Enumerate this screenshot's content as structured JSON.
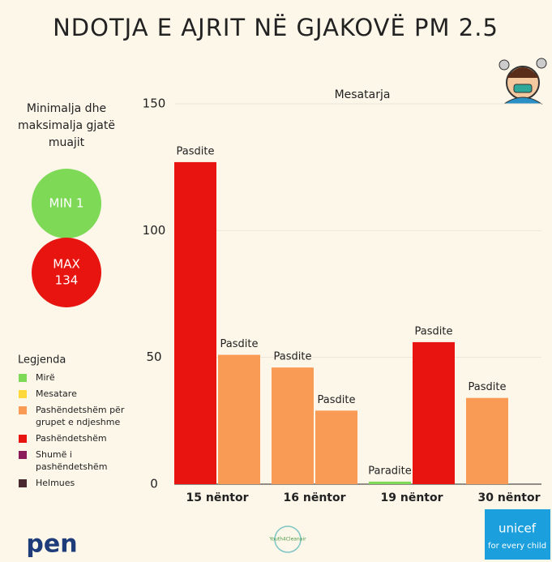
{
  "chart_data": {
    "type": "bar",
    "title": "NDOTJA E AJRIT NË GJAKOVË PM 2.5",
    "annotation": "Mesatarja",
    "side_text": [
      "Minimalja dhe",
      "maksimalja gjatë",
      "muajit"
    ],
    "min_text": "MIN 1",
    "max_text": [
      "MAX",
      "134"
    ],
    "categories": [
      "15  nëntor",
      "16 nëntor",
      "19 nëntor",
      "30 nëntor"
    ],
    "series": [
      {
        "values": [
          127,
          46,
          1,
          34
        ],
        "colors": [
          "#e8140f",
          "#f99a55",
          "#7ed957",
          "#f99a55"
        ],
        "bar_labels": [
          "Pasdite",
          "Pasdite",
          "Paradite",
          "Pasdite"
        ]
      },
      {
        "values": [
          51,
          29,
          56,
          null
        ],
        "colors": [
          "#f99a55",
          "#f99a55",
          "#e8140f",
          null
        ],
        "bar_labels": [
          "Pasdite",
          "Pasdite",
          "Pasdite",
          null
        ]
      }
    ],
    "ylim": [
      0,
      150
    ],
    "yticks": [
      0,
      50,
      100,
      150
    ],
    "legend": {
      "title": "Legjenda",
      "items": [
        {
          "label": [
            "Mirë"
          ],
          "color": "#7ed957"
        },
        {
          "label": [
            "Mesatare"
          ],
          "color": "#ffd93a"
        },
        {
          "label": [
            "Pashëndetshëm për",
            "grupet e ndjeshme"
          ],
          "color": "#f99a55"
        },
        {
          "label": [
            "Pashëndetshëm"
          ],
          "color": "#e8140f"
        },
        {
          "label": [
            "Shumë i",
            "pashëndetshëm"
          ],
          "color": "#8b1a5a"
        },
        {
          "label": [
            "Helmues"
          ],
          "color": "#4a2a30"
        }
      ]
    },
    "logos": {
      "left": "pen",
      "middle": "Youth4Cleanair",
      "right": [
        "unicef",
        "for every child"
      ]
    }
  }
}
